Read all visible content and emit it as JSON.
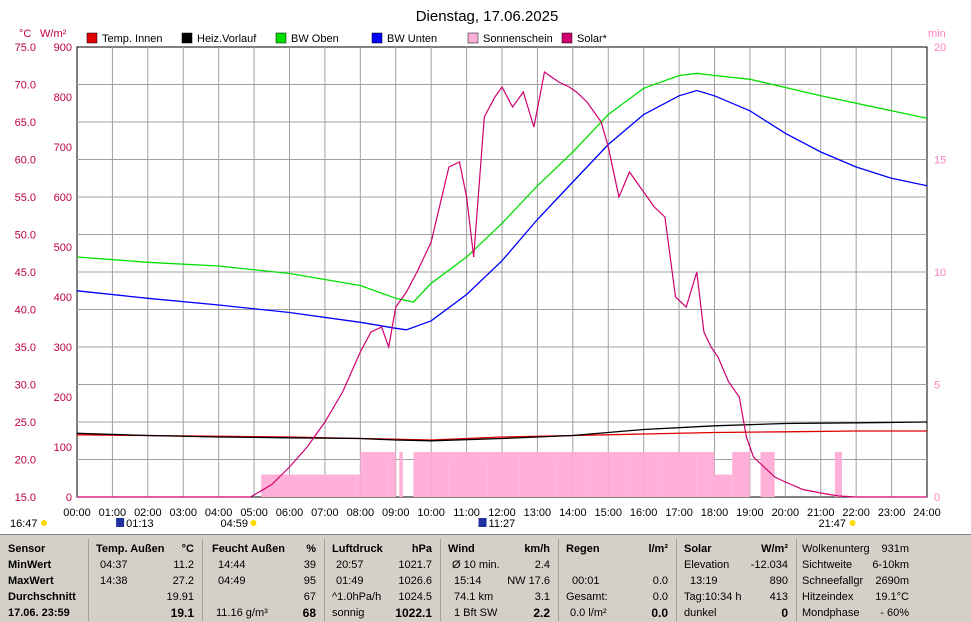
{
  "title": "Dienstag, 17.06.2025",
  "units": {
    "left1": "°C",
    "left2": "W/m²",
    "right": "min"
  },
  "legend": [
    {
      "label": "Temp. Innen",
      "color": "#e00000"
    },
    {
      "label": "Heiz.Vorlauf",
      "color": "#000000"
    },
    {
      "label": "BW Oben",
      "color": "#00e000"
    },
    {
      "label": "BW Unten",
      "color": "#0000ff"
    },
    {
      "label": "Sonnenschein",
      "color": "#ffb0d8"
    },
    {
      "label": "Solar*",
      "color": "#d0006f"
    }
  ],
  "colors": {
    "temp_axis": "#c00040",
    "solar_axis": "#c00040",
    "right_axis": "#ff80c0",
    "grid": "#a0a0a0"
  },
  "x_ticks": [
    "00:00",
    "01:00",
    "02:00",
    "03:00",
    "04:00",
    "05:00",
    "06:00",
    "07:00",
    "08:00",
    "09:00",
    "10:00",
    "11:00",
    "12:00",
    "13:00",
    "14:00",
    "15:00",
    "16:00",
    "17:00",
    "18:00",
    "19:00",
    "20:00",
    "21:00",
    "22:00",
    "23:00",
    "24:00"
  ],
  "y_left_temp_ticks": [
    "75.0",
    "70.0",
    "65.0",
    "60.0",
    "55.0",
    "50.0",
    "45.0",
    "40.0",
    "35.0",
    "30.0",
    "25.0",
    "20.0",
    "15.0"
  ],
  "y_left_solar_ticks": [
    "900",
    "800",
    "700",
    "600",
    "500",
    "400",
    "300",
    "200",
    "100",
    "0"
  ],
  "y_right_ticks": [
    "20",
    "15",
    "10",
    "5",
    "0"
  ],
  "markers": {
    "sunrise": "04:59",
    "sunset": "21:47",
    "moonset": "01:13",
    "moonrise": "11:27",
    "bottom_left": "16:47"
  },
  "chart_data": {
    "type": "line",
    "title": "Dienstag, 17.06.2025",
    "x_unit": "hour",
    "xlim": [
      0,
      24
    ],
    "ylim_temp": [
      15,
      75
    ],
    "ylim_solar": [
      0,
      900
    ],
    "ylim_minutes": [
      0,
      20
    ],
    "series": [
      {
        "name": "Temp. Innen",
        "axis": "temp",
        "x": [
          0,
          2,
          4,
          6,
          8,
          10,
          12,
          14,
          16,
          18,
          20,
          22,
          24
        ],
        "y": [
          23.3,
          23.2,
          23.1,
          23.0,
          22.8,
          22.6,
          23.0,
          23.2,
          23.4,
          23.6,
          23.7,
          23.8,
          23.8
        ]
      },
      {
        "name": "Heiz.Vorlauf",
        "axis": "temp",
        "x": [
          0,
          2,
          4,
          6,
          8,
          9,
          10,
          12,
          14,
          16,
          18,
          20,
          22,
          24
        ],
        "y": [
          23.5,
          23.2,
          23.0,
          22.9,
          22.8,
          22.6,
          22.5,
          22.8,
          23.2,
          24.0,
          24.5,
          24.8,
          24.9,
          25.0
        ]
      },
      {
        "name": "BW Oben",
        "axis": "temp",
        "x": [
          0,
          2,
          4,
          6,
          8,
          9,
          9.5,
          10,
          11,
          12,
          13,
          14,
          15,
          16,
          17,
          17.5,
          18,
          19,
          20,
          21,
          22,
          23,
          24
        ],
        "y": [
          47.0,
          46.3,
          45.8,
          44.8,
          43.2,
          41.5,
          41.0,
          43.5,
          47.0,
          51.5,
          56.5,
          61.0,
          66.0,
          69.5,
          71.2,
          71.5,
          71.2,
          70.7,
          69.6,
          68.5,
          67.5,
          66.5,
          65.5
        ]
      },
      {
        "name": "BW Unten",
        "axis": "temp",
        "x": [
          0,
          2,
          4,
          6,
          8,
          9,
          9.3,
          10,
          11,
          12,
          13,
          14,
          15,
          16,
          17,
          17.5,
          18,
          19,
          20,
          21,
          22,
          23,
          24
        ],
        "y": [
          42.5,
          41.5,
          40.6,
          39.6,
          38.3,
          37.5,
          37.3,
          38.5,
          42.0,
          46.5,
          52.0,
          57.0,
          62.0,
          66.0,
          68.5,
          69.2,
          68.5,
          66.5,
          63.5,
          61.0,
          59.0,
          57.5,
          56.5
        ]
      },
      {
        "name": "Solar*",
        "axis": "solar",
        "x": [
          0,
          4.9,
          5.5,
          6,
          6.5,
          7,
          7.5,
          8,
          8.3,
          8.6,
          8.8,
          9,
          9.3,
          9.6,
          10,
          10.3,
          10.5,
          10.8,
          11,
          11.2,
          11.5,
          11.8,
          12,
          12.3,
          12.6,
          12.9,
          13.2,
          13.4,
          13.6,
          13.9,
          14.1,
          14.4,
          14.8,
          15,
          15.3,
          15.6,
          15.9,
          16.1,
          16.3,
          16.6,
          16.9,
          17.2,
          17.5,
          17.7,
          17.9,
          18.1,
          18.4,
          18.7,
          18.9,
          19.1,
          19.4,
          19.7,
          20,
          20.5,
          21,
          21.5,
          22,
          24
        ],
        "y": [
          0,
          0,
          25,
          60,
          100,
          150,
          210,
          290,
          330,
          340,
          300,
          380,
          410,
          450,
          510,
          600,
          660,
          670,
          600,
          480,
          760,
          800,
          820,
          780,
          810,
          740,
          850,
          840,
          830,
          820,
          810,
          790,
          750,
          700,
          600,
          650,
          620,
          600,
          580,
          560,
          400,
          380,
          450,
          330,
          300,
          280,
          230,
          200,
          120,
          80,
          60,
          40,
          30,
          15,
          8,
          2,
          0,
          0
        ]
      },
      {
        "name": "Sonnenschein",
        "axis": "minutes",
        "x": [
          0,
          5.2,
          7.9,
          8,
          8.8,
          9,
          9.1,
          9.2,
          9.5,
          10,
          10.5,
          11,
          11.6,
          12,
          12.5,
          13,
          13.5,
          14,
          14.5,
          15,
          15.5,
          16,
          16.5,
          17,
          17.5,
          17.9,
          18,
          18.5,
          19,
          19.3,
          19.7,
          20,
          21,
          21.4,
          21.6,
          22,
          24
        ],
        "y": [
          0,
          1,
          1,
          2,
          2,
          0,
          2,
          0,
          2,
          2,
          2,
          2,
          2,
          2,
          2,
          2,
          2,
          2,
          2,
          2,
          2,
          2,
          2,
          2,
          2,
          2,
          1,
          2,
          0,
          2,
          0,
          0,
          0,
          2,
          0,
          0,
          0
        ]
      }
    ]
  },
  "table": {
    "sensor": {
      "header": "Sensor",
      "min": "MinWert",
      "max": "MaxWert",
      "avg": "Durchschnitt",
      "now": "17.06. 23:59"
    },
    "temp": {
      "header": "Temp. Außen",
      "unit": "°C",
      "min_time": "04:37",
      "min_val": "11.2",
      "max_time": "14:38",
      "max_val": "27.2",
      "avg_val": "19.91",
      "now_val": "19.1"
    },
    "humidity": {
      "header": "Feucht Außen",
      "unit": "%",
      "min_time": "14:44",
      "min_val": "39",
      "max_time": "04:49",
      "max_val": "95",
      "avg_val": "67",
      "abs": "11.16 g/m³",
      "now_val": "68"
    },
    "pressure": {
      "header": "Luftdruck",
      "unit": "hPa",
      "min_time": "20:57",
      "min_val": "1021.7",
      "max_time": "01:49",
      "max_val": "1026.6",
      "trend": "^1.0hPa/h",
      "avg_val": "1024.5",
      "desc": "sonnig",
      "now_val": "1022.1"
    },
    "wind": {
      "header": "Wind",
      "unit": "km/h",
      "avg_label": "Ø 10 min.",
      "avg_val": "2.4",
      "max_time": "15:14",
      "max_val": "NW 17.6",
      "dist": "74.1 km",
      "dist_val": "3.1",
      "bft": "1 Bft SW",
      "now_val": "2.2"
    },
    "rain": {
      "header": "Regen",
      "unit": "l/m²",
      "time": "00:01",
      "val1": "0.0",
      "total_label": "Gesamt:",
      "total_val": "0.0",
      "now_label": "0.0 l/m²",
      "now_val": "0.0"
    },
    "solar": {
      "header": "Solar",
      "unit": "W/m²",
      "elev_label": "Elevation",
      "elev_val": "-12.034",
      "max_time": "13:19",
      "max_val": "890",
      "day_label": "Tag:10:34 h",
      "day_val": "413",
      "desc": "dunkel",
      "now_val": "0"
    },
    "extra": {
      "r1_label": "Wolkenunterg",
      "r1_val": "931m",
      "r2_label": "Sichtweite",
      "r2_val": "6-10km",
      "r3_label": "Schneefallgr",
      "r3_val": "2690m",
      "r4_label": "Hitzeindex",
      "r4_val": "19.1°C",
      "r5_label": "Mondphase",
      "r5_val": "- 60%"
    }
  }
}
